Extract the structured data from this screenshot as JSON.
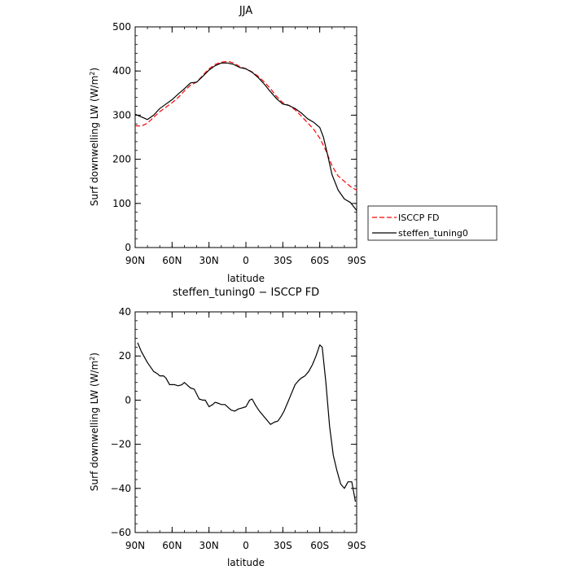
{
  "chart_data": [
    {
      "type": "line",
      "title": "JJA",
      "xlabel": "latitude",
      "ylabel": "Surf downwelling LW (W/m²)",
      "ylim": [
        0,
        500
      ],
      "yticks": [
        0,
        100,
        200,
        300,
        400,
        500
      ],
      "xlim": [
        90,
        -90
      ],
      "xticks": [
        {
          "value": 90,
          "label": "90N"
        },
        {
          "value": 60,
          "label": "60N"
        },
        {
          "value": 30,
          "label": "30N"
        },
        {
          "value": 0,
          "label": "0"
        },
        {
          "value": -30,
          "label": "30S"
        },
        {
          "value": -60,
          "label": "60S"
        },
        {
          "value": -90,
          "label": "90S"
        }
      ],
      "legend_position": "right",
      "series": [
        {
          "name": "ISCCP FD",
          "color": "#ff0000",
          "dash": "dashed",
          "x": [
            90,
            85,
            80,
            75,
            70,
            65,
            60,
            55,
            50,
            45,
            40,
            35,
            30,
            25,
            20,
            15,
            10,
            5,
            0,
            -5,
            -10,
            -15,
            -20,
            -25,
            -30,
            -35,
            -40,
            -45,
            -50,
            -55,
            -60,
            -65,
            -70,
            -75,
            -80,
            -85,
            -90
          ],
          "y": [
            276,
            275,
            282,
            295,
            308,
            318,
            328,
            340,
            355,
            368,
            375,
            390,
            405,
            415,
            420,
            422,
            418,
            410,
            405,
            398,
            388,
            375,
            360,
            342,
            328,
            322,
            312,
            298,
            283,
            268,
            248,
            220,
            185,
            162,
            150,
            138,
            130
          ]
        },
        {
          "name": "steffen_tuning0",
          "color": "#000000",
          "dash": "solid",
          "x": [
            90,
            85,
            80,
            75,
            70,
            65,
            60,
            55,
            50,
            45,
            40,
            35,
            30,
            25,
            20,
            15,
            10,
            5,
            0,
            -5,
            -10,
            -15,
            -20,
            -25,
            -30,
            -35,
            -40,
            -45,
            -50,
            -55,
            -60,
            -63,
            -66,
            -70,
            -75,
            -80,
            -85,
            -90
          ],
          "y": [
            302,
            296,
            290,
            300,
            315,
            325,
            335,
            348,
            360,
            373,
            375,
            388,
            402,
            412,
            418,
            418,
            415,
            408,
            405,
            397,
            385,
            370,
            353,
            337,
            325,
            322,
            315,
            305,
            292,
            284,
            272,
            250,
            215,
            165,
            130,
            110,
            102,
            84
          ]
        }
      ]
    },
    {
      "type": "line",
      "title": "steffen_tuning0 − ISCCP FD",
      "xlabel": "latitude",
      "ylabel": "Surf downwelling LW (W/m²)",
      "ylim": [
        -60,
        40
      ],
      "yticks": [
        -60,
        -40,
        -20,
        0,
        20,
        40
      ],
      "xlim": [
        90,
        -90
      ],
      "xticks": [
        {
          "value": 90,
          "label": "90N"
        },
        {
          "value": 60,
          "label": "60N"
        },
        {
          "value": 30,
          "label": "30N"
        },
        {
          "value": 0,
          "label": "0"
        },
        {
          "value": -30,
          "label": "30S"
        },
        {
          "value": -60,
          "label": "60S"
        },
        {
          "value": -90,
          "label": "90S"
        }
      ],
      "series": [
        {
          "color": "#000000",
          "dash": "solid",
          "x": [
            88,
            85,
            80,
            75,
            72,
            70,
            67,
            65,
            62,
            58,
            55,
            52,
            50,
            47,
            45,
            42,
            38,
            35,
            33,
            30,
            27,
            25,
            22,
            20,
            17,
            14,
            12,
            9,
            6,
            3,
            0,
            -3,
            -5,
            -8,
            -11,
            -14,
            -17,
            -20,
            -23,
            -26,
            -29,
            -31,
            -34,
            -37,
            -40,
            -43,
            -45,
            -48,
            -51,
            -54,
            -57,
            -60,
            -62,
            -65,
            -68,
            -71,
            -74,
            -77,
            -80,
            -83,
            -86,
            -89
          ],
          "y": [
            26,
            22,
            17,
            13,
            12,
            11,
            11,
            10,
            7,
            7,
            6.5,
            7,
            8,
            6.5,
            5.5,
            5,
            0.5,
            0,
            0,
            -3,
            -2,
            -1,
            -1.5,
            -2,
            -2,
            -3.5,
            -4.5,
            -5,
            -4,
            -3.5,
            -3,
            0,
            0.5,
            -2.5,
            -5,
            -7,
            -9,
            -11,
            -10,
            -9.5,
            -7,
            -5,
            -1,
            3,
            7,
            9,
            10,
            11,
            13,
            16,
            20,
            25,
            24,
            8,
            -12,
            -25,
            -32,
            -38,
            -40,
            -37,
            -37,
            -46
          ]
        }
      ]
    }
  ]
}
